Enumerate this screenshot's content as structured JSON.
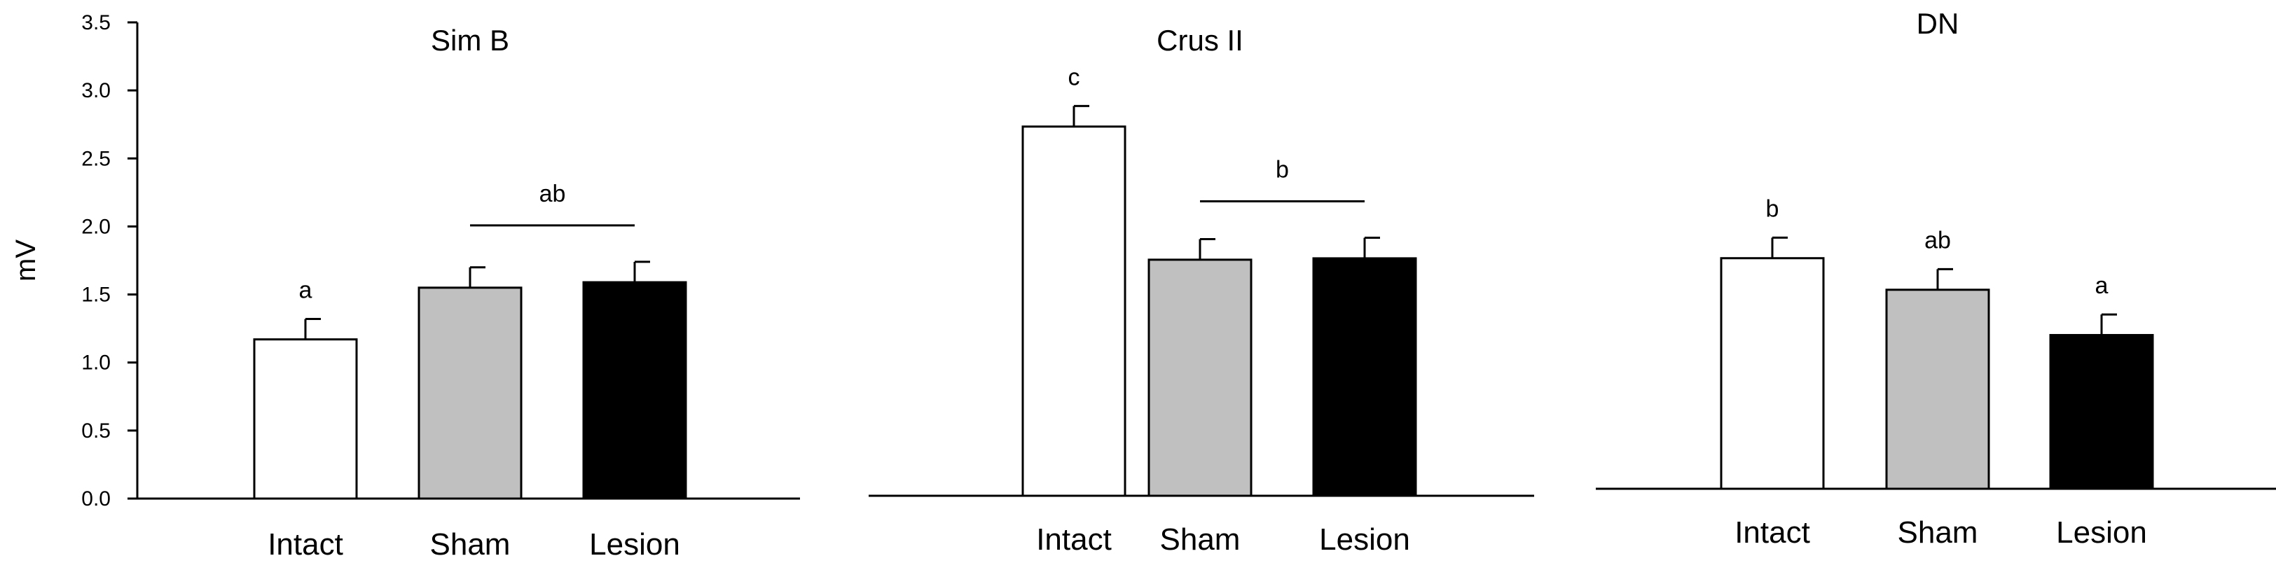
{
  "chart_data": [
    {
      "type": "bar",
      "title": "Sim B",
      "ylabel": "mV",
      "ylim": [
        0,
        3.5
      ],
      "yticks": [
        "0.0",
        "0.5",
        "1.0",
        "1.5",
        "2.0",
        "2.5",
        "3.0",
        "3.5"
      ],
      "categories": [
        "Intact",
        "Sham",
        "Lesion"
      ],
      "values": [
        1.17,
        1.55,
        1.59
      ],
      "errors": [
        0.15,
        0.15,
        0.15
      ],
      "colors": [
        "#ffffff",
        "#c0c0c0",
        "#000000"
      ],
      "annotations": [
        {
          "label": "a",
          "bars": [
            0
          ]
        },
        {
          "label": "ab",
          "bars": [
            1,
            2
          ]
        }
      ]
    },
    {
      "type": "bar",
      "title": "Crus II",
      "ylim": [
        0,
        3.5
      ],
      "categories": [
        "Intact",
        "Sham",
        "Lesion"
      ],
      "values": [
        2.69,
        1.72,
        1.73
      ],
      "errors": [
        0.15,
        0.15,
        0.15
      ],
      "colors": [
        "#ffffff",
        "#c0c0c0",
        "#000000"
      ],
      "annotations": [
        {
          "label": "c",
          "bars": [
            0
          ]
        },
        {
          "label": "b",
          "bars": [
            1,
            2
          ]
        }
      ]
    },
    {
      "type": "bar",
      "title": "DN",
      "ylim": [
        0,
        3.5
      ],
      "categories": [
        "Intact",
        "Sham",
        "Lesion"
      ],
      "values": [
        1.68,
        1.45,
        1.12
      ],
      "errors": [
        0.15,
        0.15,
        0.15
      ],
      "colors": [
        "#ffffff",
        "#c0c0c0",
        "#000000"
      ],
      "annotations": [
        {
          "label": "b",
          "bars": [
            0
          ]
        },
        {
          "label": "ab",
          "bars": [
            1
          ]
        },
        {
          "label": "a",
          "bars": [
            2
          ]
        }
      ]
    }
  ]
}
